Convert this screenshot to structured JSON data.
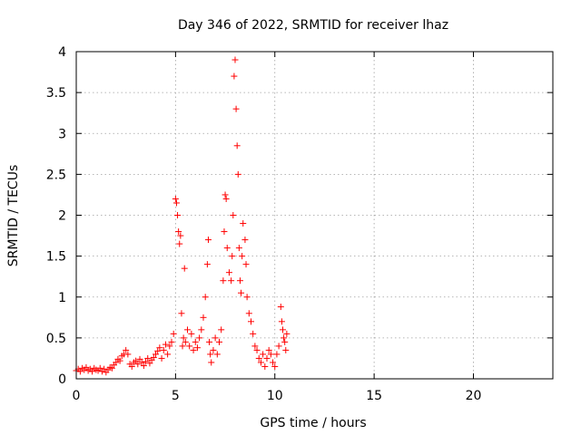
{
  "chart_data": {
    "type": "scatter",
    "title": "Day 346 of 2022, SRMTID for receiver lhaz",
    "xlabel": "GPS time / hours",
    "ylabel": "SRMTID / TECUs",
    "xlim": [
      0,
      24
    ],
    "ylim": [
      0,
      4
    ],
    "xticks": [
      0,
      5,
      10,
      15,
      20
    ],
    "xtick_labels": [
      "0",
      "5",
      "10",
      "15",
      "20"
    ],
    "yticks": [
      0,
      0.5,
      1,
      1.5,
      2,
      2.5,
      3,
      3.5,
      4
    ],
    "ytick_labels": [
      "0",
      "0.5",
      "1",
      "1.5",
      "2",
      "2.5",
      "3",
      "3.5",
      "4"
    ],
    "grid": true,
    "marker": "+",
    "marker_color": "#ff0000",
    "series": [
      {
        "name": "SRMTID",
        "points": [
          [
            0.0,
            0.1
          ],
          [
            0.1,
            0.12
          ],
          [
            0.2,
            0.09
          ],
          [
            0.3,
            0.13
          ],
          [
            0.4,
            0.11
          ],
          [
            0.5,
            0.14
          ],
          [
            0.6,
            0.1
          ],
          [
            0.7,
            0.12
          ],
          [
            0.8,
            0.09
          ],
          [
            0.9,
            0.13
          ],
          [
            1.0,
            0.11
          ],
          [
            1.1,
            0.1
          ],
          [
            1.2,
            0.13
          ],
          [
            1.3,
            0.09
          ],
          [
            1.4,
            0.12
          ],
          [
            1.5,
            0.08
          ],
          [
            1.6,
            0.11
          ],
          [
            1.7,
            0.14
          ],
          [
            1.8,
            0.13
          ],
          [
            1.9,
            0.17
          ],
          [
            2.0,
            0.2
          ],
          [
            2.1,
            0.24
          ],
          [
            2.2,
            0.22
          ],
          [
            2.3,
            0.28
          ],
          [
            2.4,
            0.3
          ],
          [
            2.5,
            0.35
          ],
          [
            2.6,
            0.3
          ],
          [
            2.7,
            0.18
          ],
          [
            2.8,
            0.15
          ],
          [
            2.9,
            0.2
          ],
          [
            3.0,
            0.22
          ],
          [
            3.1,
            0.18
          ],
          [
            3.2,
            0.24
          ],
          [
            3.3,
            0.2
          ],
          [
            3.4,
            0.16
          ],
          [
            3.5,
            0.21
          ],
          [
            3.6,
            0.25
          ],
          [
            3.7,
            0.19
          ],
          [
            3.8,
            0.23
          ],
          [
            3.9,
            0.26
          ],
          [
            4.0,
            0.3
          ],
          [
            4.1,
            0.34
          ],
          [
            4.2,
            0.38
          ],
          [
            4.3,
            0.25
          ],
          [
            4.4,
            0.35
          ],
          [
            4.5,
            0.42
          ],
          [
            4.6,
            0.3
          ],
          [
            4.7,
            0.4
          ],
          [
            4.8,
            0.45
          ],
          [
            4.9,
            0.55
          ],
          [
            5.0,
            2.2
          ],
          [
            5.05,
            2.15
          ],
          [
            5.1,
            2.0
          ],
          [
            5.15,
            1.8
          ],
          [
            5.2,
            1.65
          ],
          [
            5.25,
            1.75
          ],
          [
            5.3,
            0.8
          ],
          [
            5.35,
            0.4
          ],
          [
            5.4,
            0.5
          ],
          [
            5.45,
            1.35
          ],
          [
            5.5,
            0.45
          ],
          [
            5.6,
            0.6
          ],
          [
            5.7,
            0.4
          ],
          [
            5.8,
            0.55
          ],
          [
            5.9,
            0.35
          ],
          [
            6.0,
            0.45
          ],
          [
            6.1,
            0.38
          ],
          [
            6.2,
            0.5
          ],
          [
            6.3,
            0.6
          ],
          [
            6.4,
            0.75
          ],
          [
            6.5,
            1.0
          ],
          [
            6.6,
            1.4
          ],
          [
            6.65,
            1.7
          ],
          [
            6.7,
            0.45
          ],
          [
            6.75,
            0.3
          ],
          [
            6.8,
            0.2
          ],
          [
            6.9,
            0.35
          ],
          [
            7.0,
            0.5
          ],
          [
            7.1,
            0.3
          ],
          [
            7.2,
            0.45
          ],
          [
            7.3,
            0.6
          ],
          [
            7.4,
            1.2
          ],
          [
            7.45,
            1.8
          ],
          [
            7.5,
            2.25
          ],
          [
            7.55,
            2.2
          ],
          [
            7.6,
            1.6
          ],
          [
            7.7,
            1.3
          ],
          [
            7.8,
            1.2
          ],
          [
            7.85,
            1.5
          ],
          [
            7.9,
            2.0
          ],
          [
            7.95,
            3.7
          ],
          [
            8.0,
            3.9
          ],
          [
            8.05,
            3.3
          ],
          [
            8.1,
            2.85
          ],
          [
            8.15,
            2.5
          ],
          [
            8.2,
            1.6
          ],
          [
            8.25,
            1.2
          ],
          [
            8.3,
            1.05
          ],
          [
            8.35,
            1.5
          ],
          [
            8.4,
            1.9
          ],
          [
            8.5,
            1.7
          ],
          [
            8.55,
            1.4
          ],
          [
            8.6,
            1.0
          ],
          [
            8.7,
            0.8
          ],
          [
            8.8,
            0.7
          ],
          [
            8.9,
            0.55
          ],
          [
            9.0,
            0.4
          ],
          [
            9.1,
            0.35
          ],
          [
            9.2,
            0.25
          ],
          [
            9.3,
            0.2
          ],
          [
            9.4,
            0.3
          ],
          [
            9.5,
            0.15
          ],
          [
            9.6,
            0.25
          ],
          [
            9.7,
            0.35
          ],
          [
            9.8,
            0.3
          ],
          [
            9.9,
            0.2
          ],
          [
            10.0,
            0.15
          ],
          [
            10.1,
            0.3
          ],
          [
            10.2,
            0.4
          ],
          [
            10.3,
            0.88
          ],
          [
            10.35,
            0.7
          ],
          [
            10.4,
            0.6
          ],
          [
            10.45,
            0.5
          ],
          [
            10.5,
            0.45
          ],
          [
            10.55,
            0.35
          ],
          [
            10.6,
            0.55
          ]
        ]
      }
    ]
  }
}
